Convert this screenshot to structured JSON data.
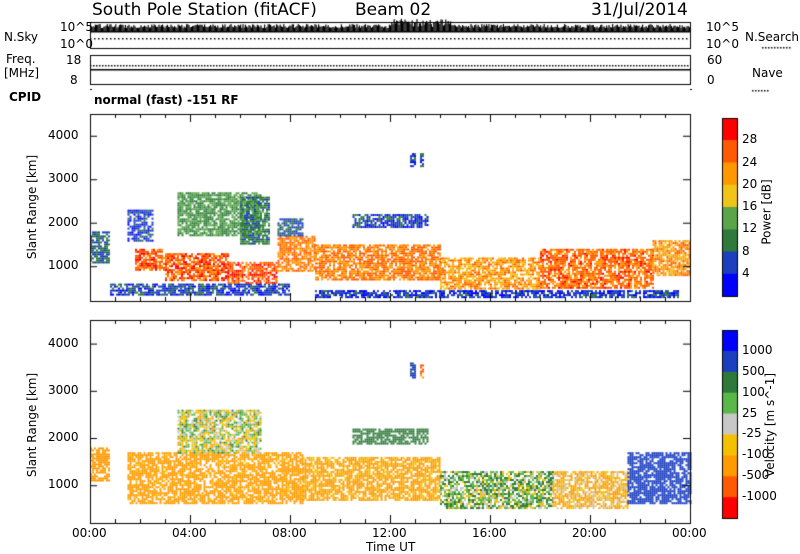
{
  "header": {
    "station": "South Pole Station (fitACF)",
    "beam": "Beam 02",
    "date": "31/Jul/2014"
  },
  "noise_panel": {
    "left_label": "N.Sky",
    "right_label": "N.Search",
    "ticks_left": [
      "10^5",
      "10^0"
    ],
    "ticks_right": [
      "10^5",
      "10^0"
    ]
  },
  "freq_panel": {
    "left_label_1": "Freq.",
    "left_label_2": "[MHz]",
    "right_label": "Nave",
    "ticks_left": [
      "18",
      "8"
    ],
    "ticks_right": [
      "60",
      "0"
    ]
  },
  "cpid": {
    "label": "CPID",
    "mode": "normal (fast) -151 RF"
  },
  "time_axis": {
    "title": "Time UT",
    "ticks": [
      "00:00",
      "04:00",
      "08:00",
      "12:00",
      "16:00",
      "20:00",
      "00:00"
    ]
  },
  "chart_data": [
    {
      "type": "heatmap",
      "title": "",
      "xlabel": "Time UT",
      "ylabel": "Slant Range [km]",
      "x_range_hours": [
        0,
        24
      ],
      "y_range_km": [
        200,
        4500
      ],
      "yticks": [
        1000,
        2000,
        3000,
        4000
      ],
      "colorbar": {
        "label": "Power [dB]",
        "ticks": [
          "28",
          "24",
          "20",
          "16",
          "12",
          "8",
          "4"
        ],
        "tick_values": [
          28,
          24,
          20,
          16,
          12,
          8,
          4
        ],
        "range": [
          0,
          32
        ],
        "colors": [
          "#0000ff",
          "#1c3fbf",
          "#2e7a3a",
          "#5aa54a",
          "#f0c419",
          "#ff9800",
          "#ff5a00",
          "#ff0000"
        ]
      },
      "regions": [
        {
          "t": [
            0.0,
            0.8
          ],
          "r": [
            1100,
            1800
          ],
          "value": 8
        },
        {
          "t": [
            1.8,
            3.0
          ],
          "r": [
            900,
            1400
          ],
          "value": 26
        },
        {
          "t": [
            3.0,
            5.5
          ],
          "r": [
            700,
            1300
          ],
          "value": 26
        },
        {
          "t": [
            5.5,
            7.5
          ],
          "r": [
            600,
            1100
          ],
          "value": 26
        },
        {
          "t": [
            7.5,
            9.0
          ],
          "r": [
            900,
            1700
          ],
          "value": 24
        },
        {
          "t": [
            9.0,
            14.0
          ],
          "r": [
            700,
            1500
          ],
          "value": 24
        },
        {
          "t": [
            14.0,
            18.0
          ],
          "r": [
            500,
            1200
          ],
          "value": 22
        },
        {
          "t": [
            18.0,
            22.5
          ],
          "r": [
            500,
            1400
          ],
          "value": 25
        },
        {
          "t": [
            22.5,
            24.0
          ],
          "r": [
            800,
            1600
          ],
          "value": 22
        },
        {
          "t": [
            1.5,
            2.5
          ],
          "r": [
            1600,
            2300
          ],
          "value": 6
        },
        {
          "t": [
            3.5,
            6.8
          ],
          "r": [
            1700,
            2700
          ],
          "value": 12
        },
        {
          "t": [
            6.0,
            7.2
          ],
          "r": [
            1500,
            2600
          ],
          "value": 10
        },
        {
          "t": [
            7.5,
            8.5
          ],
          "r": [
            1700,
            2100
          ],
          "value": 8
        },
        {
          "t": [
            10.5,
            13.5
          ],
          "r": [
            1900,
            2200
          ],
          "value": 6
        },
        {
          "t": [
            12.8,
            13.0
          ],
          "r": [
            3300,
            3600
          ],
          "value": 6
        },
        {
          "t": [
            13.2,
            13.35
          ],
          "r": [
            3300,
            3600
          ],
          "value": 6
        },
        {
          "t": [
            9.0,
            23.5
          ],
          "r": [
            300,
            450
          ],
          "value": 5
        },
        {
          "t": [
            0.8,
            8.0
          ],
          "r": [
            350,
            600
          ],
          "value": 6
        }
      ]
    },
    {
      "type": "heatmap",
      "title": "",
      "xlabel": "Time UT",
      "ylabel": "Slant Range [km]",
      "x_range_hours": [
        0,
        24
      ],
      "y_range_km": [
        200,
        4500
      ],
      "yticks": [
        1000,
        2000,
        3000,
        4000
      ],
      "colorbar": {
        "label": "Velocity [m s^-1]",
        "ticks": [
          "1000",
          "500",
          "100",
          "25",
          "-25",
          "-100",
          "-500",
          "-1000"
        ],
        "colors": [
          "#ff0000",
          "#ff5a00",
          "#ff9a00",
          "#f5c000",
          "#c8c8c8",
          "#5ab84a",
          "#2e7a3a",
          "#1c3fbf",
          "#0000ff"
        ]
      },
      "regions": [
        {
          "t": [
            0.0,
            0.8
          ],
          "r": [
            1100,
            1800
          ],
          "value": -300
        },
        {
          "t": [
            1.5,
            8.5
          ],
          "r": [
            600,
            1700
          ],
          "value": -200
        },
        {
          "t": [
            8.5,
            14.0
          ],
          "r": [
            700,
            1600
          ],
          "value": -150
        },
        {
          "t": [
            14.0,
            18.5
          ],
          "r": [
            500,
            1300
          ],
          "value": 50
        },
        {
          "t": [
            18.5,
            21.5
          ],
          "r": [
            500,
            1300
          ],
          "value": -100
        },
        {
          "t": [
            21.5,
            24.0
          ],
          "r": [
            600,
            1700
          ],
          "value": 700
        },
        {
          "t": [
            3.5,
            6.8
          ],
          "r": [
            1700,
            2600
          ],
          "value": 0
        },
        {
          "t": [
            10.5,
            13.5
          ],
          "r": [
            1900,
            2200
          ],
          "value": 300
        },
        {
          "t": [
            12.8,
            13.0
          ],
          "r": [
            3300,
            3600
          ],
          "value": 600
        },
        {
          "t": [
            13.2,
            13.35
          ],
          "r": [
            3300,
            3600
          ],
          "value": -600
        }
      ]
    }
  ]
}
